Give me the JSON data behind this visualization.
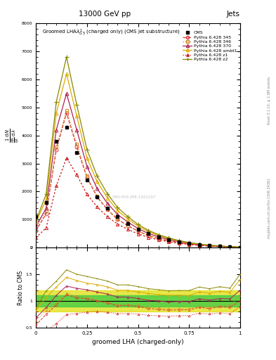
{
  "title_top": "13000 GeV pp",
  "title_right": "Jets",
  "xlabel": "groomed LHA (charged-only)",
  "ylabel_ratio": "Ratio to CMS",
  "right_label1": "Rivet 3.1.10, ≥ 1.8M events",
  "right_label2": "mcplots.cern.ch [arXiv:1306.3436]",
  "x_vals": [
    0.0,
    0.05,
    0.1,
    0.15,
    0.2,
    0.25,
    0.3,
    0.35,
    0.4,
    0.45,
    0.5,
    0.55,
    0.6,
    0.65,
    0.7,
    0.75,
    0.8,
    0.85,
    0.9,
    0.95,
    1.0
  ],
  "cms_y": [
    1100,
    1600,
    3800,
    4300,
    3400,
    2400,
    1800,
    1400,
    1100,
    850,
    650,
    500,
    380,
    290,
    210,
    150,
    100,
    70,
    45,
    25,
    10
  ],
  "p345_y": [
    600,
    1200,
    3500,
    4800,
    3600,
    2500,
    1800,
    1350,
    1000,
    780,
    580,
    430,
    320,
    240,
    175,
    125,
    88,
    60,
    40,
    22,
    10
  ],
  "p346_y": [
    700,
    1300,
    3600,
    4900,
    3700,
    2550,
    1830,
    1370,
    1020,
    790,
    595,
    440,
    330,
    248,
    180,
    128,
    90,
    62,
    41,
    23,
    11
  ],
  "p370_y": [
    750,
    1400,
    4200,
    5500,
    4200,
    2900,
    2100,
    1580,
    1180,
    910,
    680,
    505,
    380,
    285,
    208,
    148,
    104,
    71,
    47,
    26,
    12
  ],
  "pambt1_y": [
    900,
    1700,
    4800,
    6200,
    4700,
    3200,
    2350,
    1770,
    1320,
    1020,
    760,
    570,
    425,
    320,
    233,
    165,
    117,
    80,
    53,
    29,
    14
  ],
  "pz1_y": [
    350,
    700,
    2200,
    3200,
    2600,
    1900,
    1450,
    1100,
    840,
    650,
    490,
    365,
    275,
    207,
    152,
    109,
    77,
    53,
    35,
    19,
    9
  ],
  "pz2_y": [
    950,
    1900,
    5200,
    6800,
    5100,
    3500,
    2550,
    1920,
    1430,
    1105,
    825,
    615,
    460,
    345,
    251,
    179,
    126,
    86,
    57,
    31,
    15
  ],
  "ylim_main": [
    0,
    8000
  ],
  "ylim_ratio": [
    0.5,
    2.0
  ],
  "cms_color": "#000000",
  "p345_color": "#dd3333",
  "p346_color": "#cc8822",
  "p370_color": "#aa2255",
  "pambt1_color": "#ddaa00",
  "pz1_color": "#cc1111",
  "pz2_color": "#888800",
  "band_green": "#44cc44",
  "band_yellow": "#dddd00",
  "watermark": "CMS-PAS-JME-1920187"
}
